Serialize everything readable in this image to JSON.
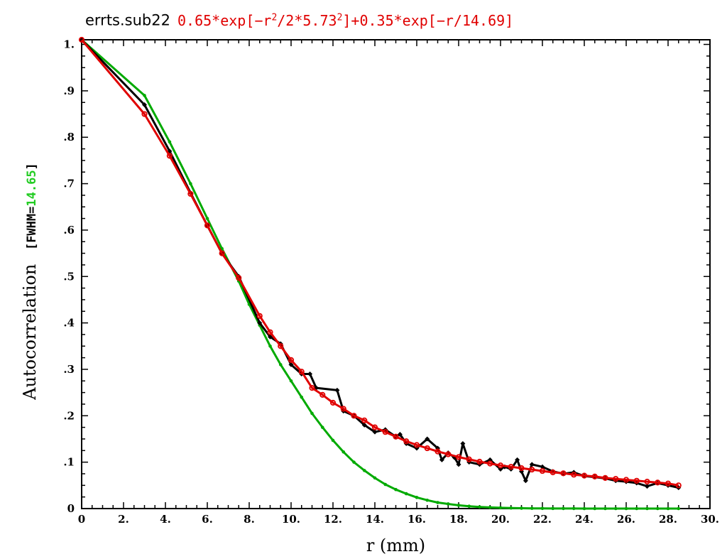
{
  "chart_data": {
    "type": "line",
    "title": {
      "name": "errts.sub22",
      "formula_html": "0.65*exp[&minus;r<sup style=\"font-size:13px\">2</sup>/2*5.73<sup style=\"font-size:13px\">2</sup>]+0.35*exp[&minus;r/14.69]"
    },
    "xlabel": "r (mm)",
    "ylabel": "Autocorrelation",
    "ylabel_fwhm_prefix": "[FWHM=",
    "ylabel_fwhm_value": "14.65",
    "ylabel_fwhm_suffix": "]",
    "xlim": [
      0,
      30
    ],
    "ylim": [
      0,
      1.01
    ],
    "x_ticks": [
      {
        "value": 0,
        "label": "0"
      },
      {
        "value": 2,
        "label": "2."
      },
      {
        "value": 4,
        "label": "4."
      },
      {
        "value": 6,
        "label": "6."
      },
      {
        "value": 8,
        "label": "8."
      },
      {
        "value": 10,
        "label": "10."
      },
      {
        "value": 12,
        "label": "12."
      },
      {
        "value": 14,
        "label": "14."
      },
      {
        "value": 16,
        "label": "16."
      },
      {
        "value": 18,
        "label": "18."
      },
      {
        "value": 20,
        "label": "20."
      },
      {
        "value": 22,
        "label": "22."
      },
      {
        "value": 24,
        "label": "24."
      },
      {
        "value": 26,
        "label": "26."
      },
      {
        "value": 28,
        "label": "28."
      },
      {
        "value": 30,
        "label": "30."
      }
    ],
    "y_ticks": [
      {
        "value": 0,
        "label": "0"
      },
      {
        "value": 0.1,
        "label": ".1"
      },
      {
        "value": 0.2,
        "label": ".2"
      },
      {
        "value": 0.3,
        "label": ".3"
      },
      {
        "value": 0.4,
        "label": ".4"
      },
      {
        "value": 0.5,
        "label": ".5"
      },
      {
        "value": 0.6,
        "label": ".6"
      },
      {
        "value": 0.7,
        "label": ".7"
      },
      {
        "value": 0.8,
        "label": ".8"
      },
      {
        "value": 0.9,
        "label": ".9"
      },
      {
        "value": 1.0,
        "label": "1."
      }
    ],
    "colors": {
      "empirical": "#000000",
      "fit": "#e00000",
      "gaussian": "#00aa00",
      "fwhm": "#22cc22"
    },
    "series": [
      {
        "key": "empirical",
        "x": [
          0,
          3.0,
          4.2,
          5.2,
          6.0,
          6.7,
          7.5,
          8.5,
          9.0,
          9.5,
          10.0,
          10.5,
          10.9,
          11.2,
          12.2,
          12.5,
          13.0,
          13.5,
          14.0,
          14.5,
          15.0,
          15.2,
          15.5,
          16.0,
          16.5,
          17.0,
          17.2,
          17.5,
          17.8,
          18.0,
          18.2,
          18.5,
          19.0,
          19.5,
          20.0,
          20.2,
          20.5,
          20.8,
          21.0,
          21.2,
          21.5,
          22.0,
          22.5,
          23.0,
          23.5,
          24.0,
          24.5,
          25.0,
          25.5,
          26.0,
          26.5,
          27.0,
          27.5,
          28.0,
          28.5
        ],
        "y": [
          1.01,
          0.87,
          0.77,
          0.68,
          0.61,
          0.55,
          0.5,
          0.4,
          0.37,
          0.355,
          0.31,
          0.29,
          0.29,
          0.26,
          0.255,
          0.21,
          0.2,
          0.18,
          0.165,
          0.17,
          0.155,
          0.16,
          0.14,
          0.13,
          0.15,
          0.13,
          0.105,
          0.12,
          0.11,
          0.095,
          0.14,
          0.1,
          0.095,
          0.105,
          0.085,
          0.09,
          0.085,
          0.105,
          0.08,
          0.06,
          0.095,
          0.09,
          0.08,
          0.075,
          0.078,
          0.07,
          0.068,
          0.065,
          0.06,
          0.058,
          0.055,
          0.048,
          0.055,
          0.05,
          0.045
        ]
      },
      {
        "key": "fit",
        "x": [
          0,
          3.0,
          4.2,
          5.2,
          6.0,
          6.7,
          7.5,
          8.5,
          9.0,
          9.5,
          10.0,
          10.5,
          11.0,
          11.5,
          12.0,
          12.5,
          13.0,
          13.5,
          14.0,
          14.5,
          15.0,
          15.5,
          16.0,
          16.5,
          17.0,
          17.5,
          18.0,
          18.5,
          19.0,
          19.5,
          20.0,
          20.5,
          21.0,
          21.5,
          22.0,
          22.5,
          23.0,
          23.5,
          24.0,
          24.5,
          25.0,
          25.5,
          26.0,
          26.5,
          27.0,
          27.5,
          28.0,
          28.5
        ],
        "y": [
          1.01,
          0.85,
          0.76,
          0.678,
          0.61,
          0.55,
          0.497,
          0.415,
          0.38,
          0.35,
          0.32,
          0.295,
          0.26,
          0.245,
          0.228,
          0.215,
          0.2,
          0.19,
          0.175,
          0.165,
          0.155,
          0.145,
          0.137,
          0.13,
          0.123,
          0.117,
          0.111,
          0.106,
          0.101,
          0.097,
          0.093,
          0.09,
          0.087,
          0.084,
          0.081,
          0.078,
          0.076,
          0.073,
          0.071,
          0.069,
          0.066,
          0.064,
          0.062,
          0.06,
          0.058,
          0.056,
          0.054,
          0.05
        ]
      },
      {
        "key": "gaussian",
        "x": [
          0,
          3.0,
          4.2,
          5.2,
          6.0,
          6.7,
          7.5,
          8.0,
          8.5,
          9.0,
          9.5,
          10.0,
          10.5,
          11.0,
          11.5,
          12.0,
          12.5,
          13.0,
          13.5,
          14.0,
          14.5,
          15.0,
          15.5,
          16.0,
          16.5,
          17.0,
          17.5,
          18.0,
          18.5,
          19.0,
          19.5,
          20.0,
          20.5,
          21.0,
          21.5,
          22.0,
          22.5,
          23.0,
          23.5,
          24.0,
          24.5,
          25.0,
          25.5,
          26.0,
          26.5,
          27.0,
          27.5,
          28.0,
          28.5
        ],
        "y": [
          1.01,
          0.89,
          0.79,
          0.7,
          0.625,
          0.56,
          0.49,
          0.44,
          0.395,
          0.35,
          0.31,
          0.275,
          0.24,
          0.205,
          0.175,
          0.147,
          0.122,
          0.1,
          0.082,
          0.066,
          0.052,
          0.041,
          0.032,
          0.024,
          0.018,
          0.013,
          0.01,
          0.007,
          0.005,
          0.0035,
          0.0025,
          0.0017,
          0.0012,
          0.0008,
          0.0005,
          0.0003,
          0.0002,
          0.0001,
          0.0001,
          0,
          0,
          0,
          0,
          0,
          0,
          0,
          0,
          0,
          0
        ]
      }
    ]
  }
}
